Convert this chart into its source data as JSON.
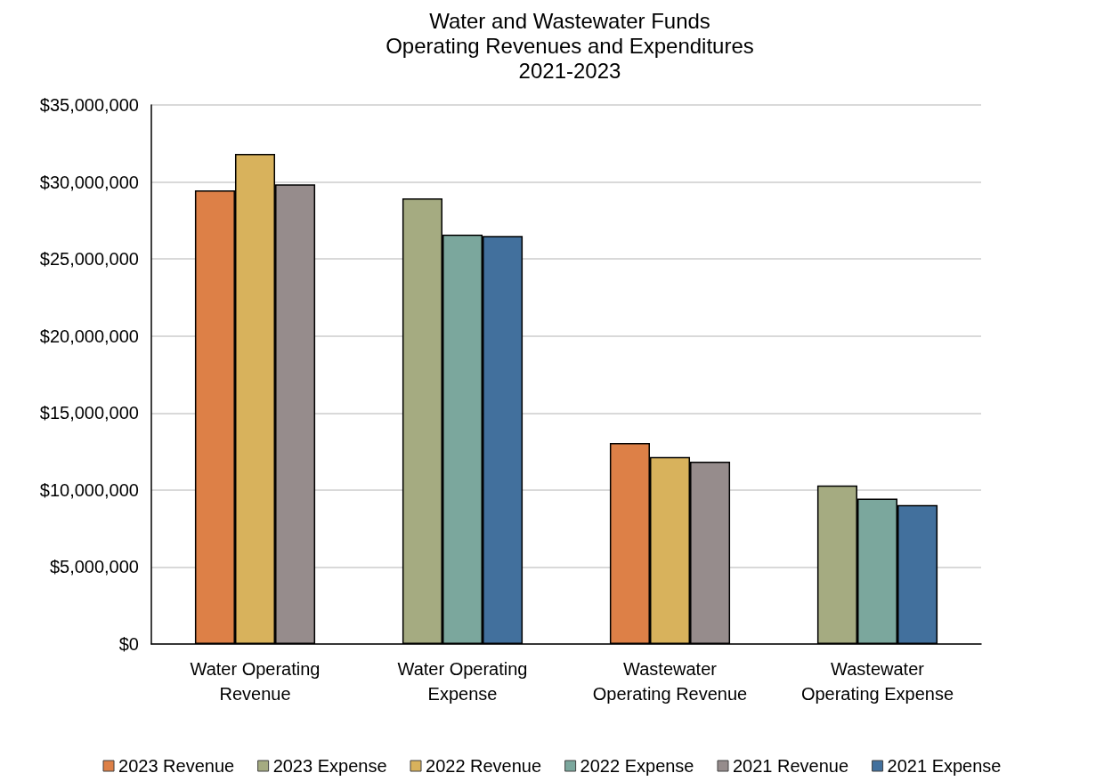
{
  "chart_data": {
    "type": "bar",
    "title": "Water and Wastewater Funds\nOperating Revenues and Expenditures\n2021-2023",
    "categories": [
      "Water Operating\nRevenue",
      "Water Operating\nExpense",
      "Wastewater\nOperating Revenue",
      "Wastewater\nOperating Expense"
    ],
    "series": [
      {
        "name": "2023 Revenue",
        "color": "#dd8047",
        "values": [
          29460000,
          null,
          13060000,
          null
        ]
      },
      {
        "name": "2023 Expense",
        "color": "#a5ab81",
        "values": [
          null,
          28940000,
          null,
          10300000
        ]
      },
      {
        "name": "2022 Revenue",
        "color": "#d8b25c",
        "values": [
          31820000,
          null,
          12140000,
          null
        ]
      },
      {
        "name": "2022 Expense",
        "color": "#7ba79d",
        "values": [
          null,
          26580000,
          null,
          9450000
        ]
      },
      {
        "name": "2021 Revenue",
        "color": "#968c8c",
        "values": [
          29840000,
          null,
          11840000,
          null
        ]
      },
      {
        "name": "2021 Expense",
        "color": "#42709d",
        "values": [
          null,
          26500000,
          null,
          9030000
        ]
      }
    ],
    "ylim": [
      0,
      35000000
    ],
    "yticks": [
      {
        "value": 0,
        "label": "$0"
      },
      {
        "value": 5000000,
        "label": "$5,000,000"
      },
      {
        "value": 10000000,
        "label": "$10,000,000"
      },
      {
        "value": 15000000,
        "label": "$15,000,000"
      },
      {
        "value": 20000000,
        "label": "$20,000,000"
      },
      {
        "value": 25000000,
        "label": "$25,000,000"
      },
      {
        "value": 30000000,
        "label": "$30,000,000"
      },
      {
        "value": 35000000,
        "label": "$35,000,000"
      }
    ],
    "grid": "y",
    "legend": "bottom"
  }
}
